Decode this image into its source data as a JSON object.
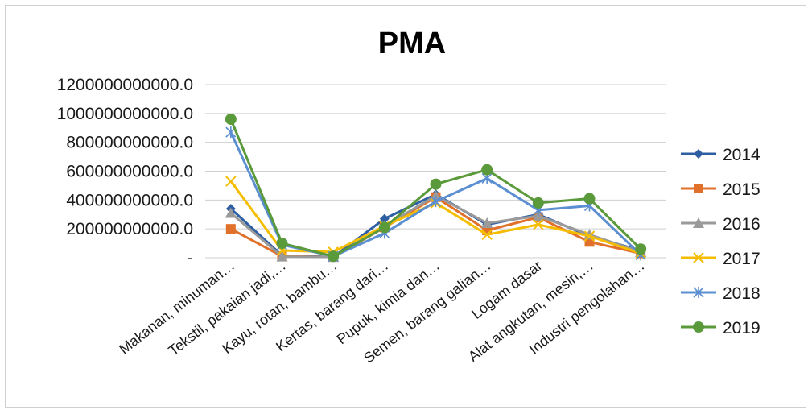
{
  "chart_data": {
    "type": "line",
    "title": "PMA",
    "xlabel": "",
    "ylabel": "",
    "ylim": [
      0,
      1200000000000
    ],
    "yticks": [
      {
        "value": 0,
        "label": "-"
      },
      {
        "value": 200000000000,
        "label": "200000000000.0"
      },
      {
        "value": 400000000000,
        "label": "400000000000.0"
      },
      {
        "value": 600000000000,
        "label": "600000000000.0"
      },
      {
        "value": 800000000000,
        "label": "800000000000.0"
      },
      {
        "value": 1000000000000,
        "label": "1000000000000.0"
      },
      {
        "value": 1200000000000,
        "label": "1200000000000.0"
      }
    ],
    "grid": true,
    "legend_position": "right",
    "categories": [
      "Makanan, minuman…",
      "Tekstil, pakaian jadi,…",
      "Kayu, rotan, bambu…",
      "Kertas, barang dari…",
      "Pupuk, kimia dan…",
      "Semen, barang galian…",
      "Logam dasar",
      "Alat angkutan, mesin,…",
      "Industri pengolahan…"
    ],
    "series": [
      {
        "name": "2014",
        "color": "#2e5fa3",
        "marker": "diamond",
        "values": [
          340000000000,
          15000000000,
          5000000000,
          270000000000,
          440000000000,
          230000000000,
          300000000000,
          150000000000,
          50000000000
        ]
      },
      {
        "name": "2015",
        "color": "#e0702a",
        "marker": "square",
        "values": [
          200000000000,
          10000000000,
          5000000000,
          210000000000,
          420000000000,
          190000000000,
          280000000000,
          110000000000,
          30000000000
        ]
      },
      {
        "name": "2016",
        "color": "#9a9a9a",
        "marker": "triangle",
        "values": [
          310000000000,
          8000000000,
          5000000000,
          220000000000,
          430000000000,
          240000000000,
          290000000000,
          160000000000,
          40000000000
        ]
      },
      {
        "name": "2017",
        "color": "#f5bd00",
        "marker": "x",
        "values": [
          530000000000,
          50000000000,
          40000000000,
          220000000000,
          380000000000,
          160000000000,
          230000000000,
          150000000000,
          30000000000
        ]
      },
      {
        "name": "2018",
        "color": "#5b8fd1",
        "marker": "star",
        "values": [
          870000000000,
          90000000000,
          10000000000,
          170000000000,
          390000000000,
          550000000000,
          330000000000,
          360000000000,
          20000000000
        ]
      },
      {
        "name": "2019",
        "color": "#5a9a3a",
        "marker": "circle",
        "values": [
          960000000000,
          100000000000,
          10000000000,
          210000000000,
          510000000000,
          610000000000,
          380000000000,
          410000000000,
          60000000000
        ]
      }
    ]
  }
}
